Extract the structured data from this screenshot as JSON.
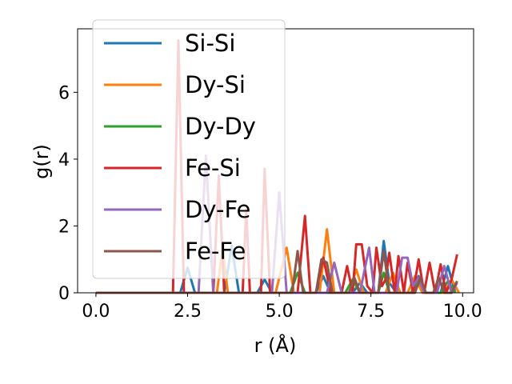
{
  "chart_data": {
    "type": "line",
    "title": "",
    "xlabel": "r (Å)",
    "ylabel": "g(r)",
    "xlim": [
      -0.5,
      10.3
    ],
    "ylim": [
      0,
      7.9
    ],
    "xticks": [
      "0.0",
      "2.5",
      "5.0",
      "7.5",
      "10.0"
    ],
    "xtick_values": [
      0,
      2.5,
      5,
      7.5,
      10
    ],
    "yticks": [
      "0",
      "2",
      "4",
      "6"
    ],
    "ytick_values": [
      0,
      2,
      4,
      6
    ],
    "grid": false,
    "legend_position": "upper-left",
    "series": [
      {
        "name": "Si-Si",
        "color": "#1f77b4",
        "points": [
          [
            0,
            0
          ],
          [
            2.3,
            0
          ],
          [
            2.5,
            0.75
          ],
          [
            2.7,
            0
          ],
          [
            3.5,
            0
          ],
          [
            3.7,
            1.4
          ],
          [
            3.9,
            0
          ],
          [
            4.4,
            0
          ],
          [
            4.6,
            0.4
          ],
          [
            4.8,
            0
          ],
          [
            6.0,
            0
          ],
          [
            6.2,
            0.5
          ],
          [
            6.4,
            0
          ],
          [
            7.0,
            0
          ],
          [
            7.2,
            0.3
          ],
          [
            7.4,
            0
          ],
          [
            7.7,
            0
          ],
          [
            7.85,
            1.55
          ],
          [
            8.0,
            0.3
          ],
          [
            8.2,
            0
          ],
          [
            8.6,
            0
          ],
          [
            8.8,
            0.5
          ],
          [
            9.0,
            0
          ],
          [
            9.4,
            0
          ],
          [
            9.6,
            0.8
          ],
          [
            9.8,
            0
          ]
        ]
      },
      {
        "name": "Dy-Si",
        "color": "#ff7f0e",
        "points": [
          [
            0,
            0
          ],
          [
            3.3,
            0
          ],
          [
            3.45,
            1.35
          ],
          [
            3.6,
            0
          ],
          [
            4.9,
            0
          ],
          [
            5.2,
            1.35
          ],
          [
            5.4,
            0
          ],
          [
            6.1,
            0
          ],
          [
            6.3,
            1.9
          ],
          [
            6.5,
            0
          ],
          [
            6.9,
            0
          ],
          [
            7.1,
            0.7
          ],
          [
            7.3,
            0
          ],
          [
            7.9,
            0
          ],
          [
            8.1,
            0.6
          ],
          [
            8.3,
            0
          ],
          [
            8.5,
            0
          ],
          [
            8.7,
            0.5
          ],
          [
            8.9,
            0
          ],
          [
            9.5,
            0
          ],
          [
            9.7,
            0.4
          ],
          [
            9.9,
            0
          ]
        ]
      },
      {
        "name": "Dy-Dy",
        "color": "#2ca02c",
        "points": [
          [
            0,
            0
          ],
          [
            5.3,
            0
          ],
          [
            5.5,
            0.6
          ],
          [
            5.7,
            0
          ],
          [
            6.8,
            0
          ],
          [
            7.0,
            0.4
          ],
          [
            7.2,
            0
          ],
          [
            7.7,
            0
          ],
          [
            7.85,
            0.6
          ],
          [
            8.0,
            0
          ],
          [
            8.6,
            0
          ],
          [
            8.8,
            0.35
          ],
          [
            9.0,
            0
          ],
          [
            9.4,
            0
          ],
          [
            9.6,
            0.35
          ],
          [
            9.8,
            0
          ]
        ]
      },
      {
        "name": "Fe-Si",
        "color": "#d62728",
        "points": [
          [
            0,
            0
          ],
          [
            2.1,
            0
          ],
          [
            2.25,
            7.55
          ],
          [
            2.4,
            0
          ],
          [
            3.2,
            0
          ],
          [
            3.35,
            3.5
          ],
          [
            3.5,
            0
          ],
          [
            4.0,
            0
          ],
          [
            4.1,
            2.5
          ],
          [
            4.2,
            0
          ],
          [
            4.5,
            0
          ],
          [
            4.6,
            3.7
          ],
          [
            4.75,
            0
          ],
          [
            5.5,
            0
          ],
          [
            5.7,
            2.3
          ],
          [
            5.85,
            0
          ],
          [
            6.0,
            0
          ],
          [
            6.2,
            1.05
          ],
          [
            6.4,
            0
          ],
          [
            6.7,
            0
          ],
          [
            6.85,
            0.8
          ],
          [
            7.0,
            0
          ],
          [
            7.1,
            1.45
          ],
          [
            7.25,
            1.45
          ],
          [
            7.4,
            0.2
          ],
          [
            7.55,
            0
          ],
          [
            7.65,
            1.35
          ],
          [
            7.8,
            0.2
          ],
          [
            7.9,
            0.4
          ],
          [
            8.0,
            1.2
          ],
          [
            8.15,
            0
          ],
          [
            8.25,
            1.1
          ],
          [
            8.4,
            0
          ],
          [
            8.5,
            0.9
          ],
          [
            8.65,
            0
          ],
          [
            8.8,
            1.0
          ],
          [
            8.95,
            0
          ],
          [
            9.1,
            0.9
          ],
          [
            9.25,
            0
          ],
          [
            9.4,
            0.85
          ],
          [
            9.55,
            0
          ],
          [
            9.7,
            0.4
          ],
          [
            9.85,
            1.15
          ]
        ]
      },
      {
        "name": "Dy-Fe",
        "color": "#9467bd",
        "points": [
          [
            0,
            0
          ],
          [
            2.8,
            0
          ],
          [
            3.0,
            4.1
          ],
          [
            3.2,
            0
          ],
          [
            4.8,
            0
          ],
          [
            5.0,
            3.0
          ],
          [
            5.2,
            0
          ],
          [
            6.3,
            0
          ],
          [
            6.5,
            0.9
          ],
          [
            6.7,
            0
          ],
          [
            7.2,
            0
          ],
          [
            7.45,
            1.35
          ],
          [
            7.6,
            0
          ],
          [
            8.2,
            0
          ],
          [
            8.35,
            1.05
          ],
          [
            8.5,
            1.05
          ],
          [
            8.65,
            0.2
          ],
          [
            8.8,
            0.45
          ],
          [
            8.95,
            0
          ],
          [
            9.3,
            0
          ],
          [
            9.5,
            0.8
          ],
          [
            9.7,
            0
          ],
          [
            9.85,
            0.3
          ]
        ]
      },
      {
        "name": "Fe-Fe",
        "color": "#8c564b",
        "points": [
          [
            0,
            0
          ],
          [
            5.35,
            0
          ],
          [
            5.5,
            1.25
          ],
          [
            5.65,
            0
          ],
          [
            6.0,
            0
          ],
          [
            6.15,
            1.0
          ],
          [
            6.3,
            0.9
          ],
          [
            6.45,
            0
          ],
          [
            6.9,
            0
          ],
          [
            7.05,
            0.45
          ],
          [
            7.2,
            0
          ],
          [
            7.7,
            0
          ],
          [
            7.85,
            1.25
          ],
          [
            8.0,
            0
          ],
          [
            8.7,
            0
          ],
          [
            8.85,
            0.45
          ],
          [
            9.0,
            0
          ],
          [
            9.2,
            0
          ],
          [
            9.35,
            0.45
          ],
          [
            9.5,
            0
          ],
          [
            9.7,
            0
          ],
          [
            9.85,
            0.35
          ]
        ]
      }
    ]
  }
}
